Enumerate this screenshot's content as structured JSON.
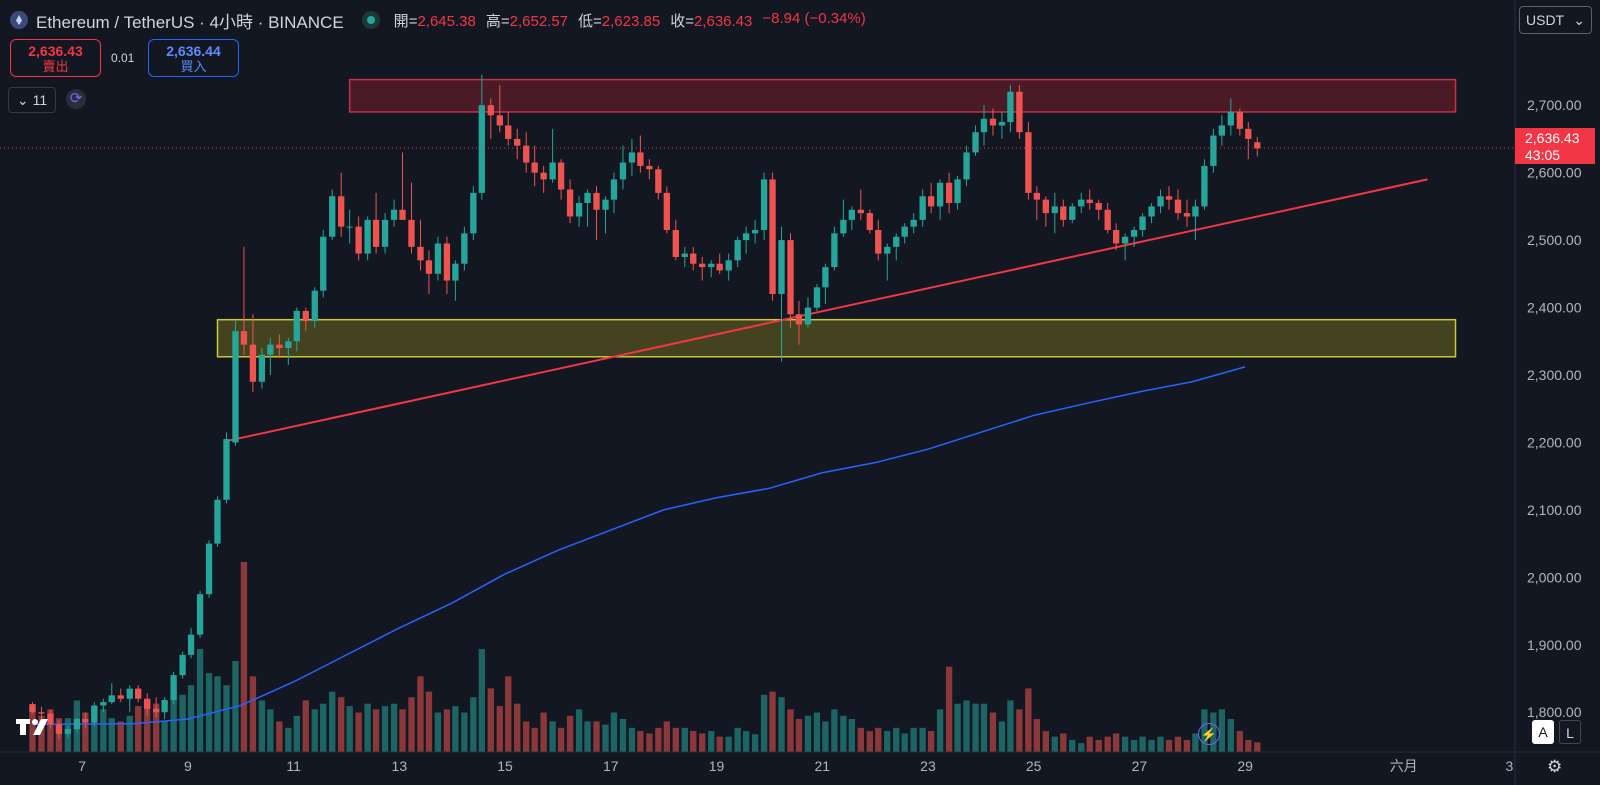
{
  "header": {
    "symbol": "Ethereum / TetherUS · 4小時 · BINANCE",
    "open_label": "開",
    "open_value": "2,645.38",
    "high_label": "高",
    "high_value": "2,652.57",
    "low_label": "低",
    "low_value": "2,623.85",
    "close_label": "收",
    "close_value": "2,636.43",
    "change": "−8.94 (−0.34%)"
  },
  "trade": {
    "sell_price": "2,636.43",
    "sell_label": "賣出",
    "spread": "0.01",
    "buy_price": "2,636.44",
    "buy_label": "買入"
  },
  "indicators": {
    "count": "11"
  },
  "currency": "USDT",
  "last_price": {
    "value": "2,636.43",
    "countdown": "43:05"
  },
  "buttons": {
    "auto": "A",
    "log": "L"
  },
  "icons": [
    "ethereum-icon",
    "market-open-icon",
    "chevron-down-icon",
    "refresh-icon",
    "tradingview-logo-icon",
    "lightning-icon",
    "gear-icon"
  ],
  "colors": {
    "background": "#131722",
    "up": "#26a69a",
    "down": "#ef5350",
    "ma": "#2962ff",
    "trendline": "#f23645",
    "resistance": "#7a1e2c",
    "support": "#6b6a1e"
  },
  "chart_data": {
    "type": "candlestick",
    "interval": "4h",
    "y_ticks": [
      1800,
      1900,
      2000,
      2100,
      2200,
      2300,
      2400,
      2500,
      2600,
      2700
    ],
    "y_tick_labels": [
      "1,800.00",
      "1,900.00",
      "2,000.00",
      "2,100.00",
      "2,200.00",
      "2,300.00",
      "2,400.00",
      "2,500.00",
      "2,600.00",
      "2,700.00"
    ],
    "x_ticks": [
      {
        "label": "7",
        "day": 7
      },
      {
        "label": "9",
        "day": 9
      },
      {
        "label": "11",
        "day": 11
      },
      {
        "label": "13",
        "day": 13
      },
      {
        "label": "15",
        "day": 15
      },
      {
        "label": "17",
        "day": 17
      },
      {
        "label": "19",
        "day": 19
      },
      {
        "label": "21",
        "day": 21
      },
      {
        "label": "23",
        "day": 23
      },
      {
        "label": "25",
        "day": 25
      },
      {
        "label": "27",
        "day": 27
      },
      {
        "label": "29",
        "day": 29
      },
      {
        "label": "六月",
        "day": 32
      },
      {
        "label": "3",
        "day": 34
      }
    ],
    "x_range_days": [
      6.24,
      34.9
    ],
    "ylim": [
      1741,
      2856
    ],
    "candles": [
      [
        6.06,
        1812,
        1815,
        1798,
        1800,
        57
      ],
      [
        6.23,
        1800,
        1808,
        1788,
        1798,
        45
      ],
      [
        6.4,
        1798,
        1803,
        1776,
        1782,
        53
      ],
      [
        6.56,
        1782,
        1788,
        1760,
        1768,
        42
      ],
      [
        6.73,
        1768,
        1780,
        1762,
        1775,
        42
      ],
      [
        6.9,
        1775,
        1792,
        1771,
        1790,
        64
      ],
      [
        7.06,
        1790,
        1800,
        1776,
        1785,
        49
      ],
      [
        7.23,
        1785,
        1815,
        1780,
        1810,
        57
      ],
      [
        7.4,
        1810,
        1820,
        1800,
        1815,
        53
      ],
      [
        7.56,
        1815,
        1843,
        1812,
        1825,
        42
      ],
      [
        7.73,
        1825,
        1835,
        1815,
        1820,
        38
      ],
      [
        7.9,
        1820,
        1840,
        1800,
        1835,
        45
      ],
      [
        8.06,
        1835,
        1840,
        1815,
        1820,
        57
      ],
      [
        8.23,
        1820,
        1828,
        1794,
        1805,
        64
      ],
      [
        8.4,
        1805,
        1822,
        1792,
        1800,
        60
      ],
      [
        8.56,
        1800,
        1822,
        1790,
        1818,
        38
      ],
      [
        8.73,
        1818,
        1860,
        1812,
        1855,
        83
      ],
      [
        8.9,
        1855,
        1890,
        1850,
        1885,
        71
      ],
      [
        9.06,
        1885,
        1925,
        1880,
        1915,
        83
      ],
      [
        9.23,
        1915,
        1980,
        1910,
        1975,
        128
      ],
      [
        9.4,
        1975,
        2055,
        1970,
        2050,
        98
      ],
      [
        9.56,
        2050,
        2120,
        2045,
        2115,
        94
      ],
      [
        9.73,
        2115,
        2215,
        2110,
        2205,
        83
      ],
      [
        9.9,
        2200,
        2380,
        2195,
        2365,
        113
      ],
      [
        10.06,
        2365,
        2490,
        2330,
        2345,
        236
      ],
      [
        10.23,
        2345,
        2390,
        2275,
        2290,
        94
      ],
      [
        10.4,
        2290,
        2340,
        2280,
        2330,
        64
      ],
      [
        10.56,
        2330,
        2355,
        2300,
        2345,
        53
      ],
      [
        10.73,
        2345,
        2360,
        2325,
        2340,
        38
      ],
      [
        10.9,
        2340,
        2355,
        2315,
        2350,
        30
      ],
      [
        11.06,
        2350,
        2400,
        2335,
        2395,
        45
      ],
      [
        11.23,
        2395,
        2400,
        2365,
        2380,
        64
      ],
      [
        11.4,
        2380,
        2430,
        2370,
        2425,
        53
      ],
      [
        11.56,
        2425,
        2515,
        2415,
        2505,
        60
      ],
      [
        11.73,
        2505,
        2575,
        2500,
        2565,
        75
      ],
      [
        11.9,
        2565,
        2600,
        2505,
        2520,
        68
      ],
      [
        12.06,
        2520,
        2545,
        2495,
        2520,
        57
      ],
      [
        12.23,
        2520,
        2535,
        2470,
        2480,
        49
      ],
      [
        12.4,
        2480,
        2535,
        2470,
        2530,
        60
      ],
      [
        12.56,
        2530,
        2570,
        2480,
        2490,
        53
      ],
      [
        12.73,
        2490,
        2540,
        2480,
        2530,
        57
      ],
      [
        12.9,
        2530,
        2560,
        2520,
        2545,
        60
      ],
      [
        13.06,
        2545,
        2630,
        2535,
        2530,
        53
      ],
      [
        13.23,
        2530,
        2585,
        2480,
        2490,
        68
      ],
      [
        13.4,
        2490,
        2530,
        2455,
        2470,
        94
      ],
      [
        13.56,
        2470,
        2485,
        2420,
        2450,
        75
      ],
      [
        13.73,
        2450,
        2505,
        2440,
        2495,
        49
      ],
      [
        13.9,
        2495,
        2505,
        2420,
        2440,
        53
      ],
      [
        14.06,
        2440,
        2470,
        2410,
        2465,
        57
      ],
      [
        14.23,
        2465,
        2520,
        2455,
        2510,
        49
      ],
      [
        14.4,
        2510,
        2580,
        2500,
        2570,
        68
      ],
      [
        14.56,
        2570,
        2745,
        2560,
        2700,
        128
      ],
      [
        14.73,
        2700,
        2710,
        2650,
        2685,
        79
      ],
      [
        14.9,
        2685,
        2730,
        2660,
        2670,
        57
      ],
      [
        15.06,
        2670,
        2690,
        2640,
        2650,
        94
      ],
      [
        15.23,
        2650,
        2665,
        2620,
        2640,
        60
      ],
      [
        15.4,
        2640,
        2660,
        2600,
        2615,
        38
      ],
      [
        15.56,
        2615,
        2640,
        2580,
        2600,
        30
      ],
      [
        15.73,
        2600,
        2610,
        2570,
        2590,
        49
      ],
      [
        15.9,
        2590,
        2665,
        2585,
        2615,
        38
      ],
      [
        16.06,
        2615,
        2620,
        2560,
        2575,
        30
      ],
      [
        16.23,
        2575,
        2590,
        2525,
        2535,
        45
      ],
      [
        16.4,
        2535,
        2565,
        2520,
        2555,
        53
      ],
      [
        16.56,
        2555,
        2575,
        2520,
        2570,
        38
      ],
      [
        16.73,
        2570,
        2580,
        2500,
        2545,
        38
      ],
      [
        16.9,
        2545,
        2565,
        2510,
        2560,
        34
      ],
      [
        17.06,
        2560,
        2600,
        2540,
        2590,
        49
      ],
      [
        17.23,
        2590,
        2640,
        2575,
        2615,
        41
      ],
      [
        17.4,
        2615,
        2650,
        2595,
        2630,
        30
      ],
      [
        17.56,
        2630,
        2655,
        2600,
        2610,
        26
      ],
      [
        17.73,
        2610,
        2620,
        2590,
        2605,
        23
      ],
      [
        17.9,
        2605,
        2610,
        2560,
        2570,
        30
      ],
      [
        18.06,
        2570,
        2580,
        2510,
        2515,
        38
      ],
      [
        18.23,
        2515,
        2530,
        2470,
        2475,
        30
      ],
      [
        18.4,
        2475,
        2490,
        2460,
        2480,
        30
      ],
      [
        18.56,
        2480,
        2490,
        2455,
        2465,
        26
      ],
      [
        18.73,
        2465,
        2475,
        2440,
        2460,
        23
      ],
      [
        18.9,
        2460,
        2470,
        2445,
        2465,
        26
      ],
      [
        19.06,
        2465,
        2480,
        2450,
        2455,
        19
      ],
      [
        19.23,
        2455,
        2480,
        2440,
        2470,
        19
      ],
      [
        19.4,
        2470,
        2505,
        2460,
        2500,
        30
      ],
      [
        19.56,
        2500,
        2520,
        2480,
        2510,
        26
      ],
      [
        19.73,
        2510,
        2530,
        2495,
        2515,
        22
      ],
      [
        19.9,
        2515,
        2600,
        2500,
        2590,
        71
      ],
      [
        20.06,
        2590,
        2600,
        2410,
        2420,
        75
      ],
      [
        20.23,
        2420,
        2520,
        2320,
        2500,
        68
      ],
      [
        20.4,
        2500,
        2510,
        2370,
        2390,
        53
      ],
      [
        20.56,
        2390,
        2410,
        2345,
        2375,
        41
      ],
      [
        20.73,
        2375,
        2415,
        2370,
        2400,
        45
      ],
      [
        20.9,
        2400,
        2435,
        2395,
        2430,
        49
      ],
      [
        21.06,
        2430,
        2465,
        2405,
        2460,
        38
      ],
      [
        21.23,
        2460,
        2520,
        2455,
        2510,
        53
      ],
      [
        21.4,
        2510,
        2560,
        2505,
        2530,
        45
      ],
      [
        21.56,
        2530,
        2550,
        2515,
        2545,
        41
      ],
      [
        21.73,
        2545,
        2575,
        2530,
        2540,
        30
      ],
      [
        21.9,
        2540,
        2545,
        2510,
        2515,
        26
      ],
      [
        22.06,
        2515,
        2530,
        2470,
        2480,
        30
      ],
      [
        22.23,
        2480,
        2495,
        2440,
        2490,
        26
      ],
      [
        22.4,
        2490,
        2510,
        2470,
        2505,
        30
      ],
      [
        22.56,
        2505,
        2525,
        2495,
        2520,
        23
      ],
      [
        22.73,
        2520,
        2540,
        2510,
        2530,
        30
      ],
      [
        22.9,
        2530,
        2575,
        2520,
        2565,
        30
      ],
      [
        23.06,
        2565,
        2585,
        2540,
        2550,
        26
      ],
      [
        23.23,
        2550,
        2590,
        2530,
        2585,
        53
      ],
      [
        23.4,
        2585,
        2600,
        2540,
        2555,
        106
      ],
      [
        23.56,
        2555,
        2595,
        2545,
        2590,
        60
      ],
      [
        23.73,
        2590,
        2640,
        2580,
        2630,
        64
      ],
      [
        23.9,
        2630,
        2670,
        2625,
        2660,
        60
      ],
      [
        24.06,
        2660,
        2700,
        2640,
        2680,
        60
      ],
      [
        24.23,
        2680,
        2695,
        2655,
        2670,
        49
      ],
      [
        24.4,
        2670,
        2690,
        2650,
        2675,
        38
      ],
      [
        24.56,
        2675,
        2730,
        2660,
        2720,
        64
      ],
      [
        24.73,
        2720,
        2730,
        2650,
        2660,
        53
      ],
      [
        24.9,
        2660,
        2675,
        2560,
        2570,
        79
      ],
      [
        25.06,
        2570,
        2580,
        2530,
        2560,
        41
      ],
      [
        25.23,
        2560,
        2565,
        2520,
        2540,
        26
      ],
      [
        25.4,
        2540,
        2570,
        2510,
        2550,
        19
      ],
      [
        25.56,
        2550,
        2560,
        2520,
        2530,
        23
      ],
      [
        25.73,
        2530,
        2555,
        2525,
        2550,
        15
      ],
      [
        25.9,
        2550,
        2570,
        2540,
        2560,
        11
      ],
      [
        26.06,
        2560,
        2575,
        2545,
        2555,
        19
      ],
      [
        26.23,
        2555,
        2560,
        2530,
        2545,
        15
      ],
      [
        26.4,
        2545,
        2555,
        2510,
        2515,
        19
      ],
      [
        26.56,
        2515,
        2525,
        2485,
        2495,
        23
      ],
      [
        26.73,
        2495,
        2510,
        2470,
        2505,
        19
      ],
      [
        26.9,
        2505,
        2520,
        2490,
        2515,
        15
      ],
      [
        27.06,
        2515,
        2540,
        2505,
        2535,
        19
      ],
      [
        27.23,
        2535,
        2555,
        2525,
        2550,
        15
      ],
      [
        27.4,
        2550,
        2575,
        2540,
        2565,
        19
      ],
      [
        27.56,
        2565,
        2580,
        2545,
        2560,
        15
      ],
      [
        27.73,
        2560,
        2575,
        2530,
        2540,
        19
      ],
      [
        27.9,
        2540,
        2560,
        2520,
        2535,
        15
      ],
      [
        28.06,
        2535,
        2560,
        2500,
        2550,
        23
      ],
      [
        28.23,
        2550,
        2620,
        2545,
        2610,
        53
      ],
      [
        28.4,
        2610,
        2665,
        2600,
        2655,
        49
      ],
      [
        28.56,
        2655,
        2685,
        2640,
        2670,
        53
      ],
      [
        28.73,
        2670,
        2710,
        2655,
        2690,
        41
      ],
      [
        28.9,
        2690,
        2695,
        2655,
        2665,
        26
      ],
      [
        29.06,
        2665,
        2675,
        2620,
        2650,
        15
      ],
      [
        29.23,
        2645,
        2653,
        2624,
        2636,
        12
      ]
    ],
    "ma_line": [
      [
        6.06,
        1782
      ],
      [
        8.0,
        1783
      ],
      [
        9.0,
        1790
      ],
      [
        10.0,
        1810
      ],
      [
        11.0,
        1845
      ],
      [
        12.0,
        1885
      ],
      [
        13.0,
        1925
      ],
      [
        14.0,
        1962
      ],
      [
        15.0,
        2005
      ],
      [
        16.0,
        2040
      ],
      [
        17.0,
        2070
      ],
      [
        18.0,
        2100
      ],
      [
        19.0,
        2118
      ],
      [
        20.0,
        2132
      ],
      [
        21.0,
        2155
      ],
      [
        22.0,
        2170
      ],
      [
        23.0,
        2190
      ],
      [
        24.0,
        2215
      ],
      [
        25.0,
        2240
      ],
      [
        26.0,
        2258
      ],
      [
        27.0,
        2275
      ],
      [
        28.0,
        2290
      ],
      [
        29.0,
        2312
      ]
    ],
    "trendline": [
      [
        9.73,
        2202
      ],
      [
        32.45,
        2590
      ]
    ],
    "zones": [
      {
        "type": "resistance",
        "x": [
          12.06,
          32.98
        ],
        "y": [
          2690,
          2738
        ]
      },
      {
        "type": "support",
        "x": [
          9.56,
          32.98
        ],
        "y": [
          2327,
          2382
        ]
      }
    ],
    "last_price": 2636.43
  }
}
